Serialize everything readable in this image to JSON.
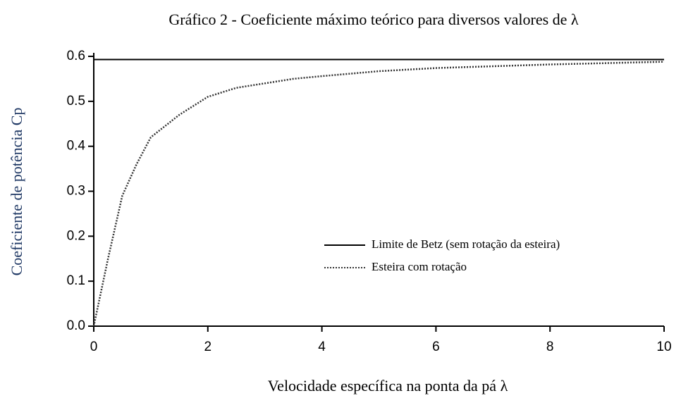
{
  "chart_data": {
    "type": "line",
    "title": "Gráfico 2 - Coeficiente máximo teórico para diversos valores de λ",
    "x_label": "Velocidade específica na ponta da pá λ",
    "y_label": "Coeficiente de potência Cp",
    "x": [
      0,
      0.25,
      0.5,
      0.75,
      1,
      1.5,
      2,
      2.5,
      3,
      3.5,
      4,
      5,
      6,
      7,
      8,
      9,
      10
    ],
    "series": [
      {
        "name": "Limite de Betz (sem rotação da esteira)",
        "color": "#000000",
        "style": "solid",
        "values": [
          0.593,
          0.593,
          0.593,
          0.593,
          0.593,
          0.593,
          0.593,
          0.593,
          0.593,
          0.593,
          0.593,
          0.593,
          0.593,
          0.593,
          0.593,
          0.593,
          0.593
        ]
      },
      {
        "name": "Esteira com rotação",
        "color": "#333333",
        "style": "dotted",
        "values": [
          0,
          0.15,
          0.29,
          0.36,
          0.42,
          0.47,
          0.51,
          0.53,
          0.54,
          0.55,
          0.556,
          0.567,
          0.574,
          0.578,
          0.582,
          0.585,
          0.588
        ]
      }
    ],
    "xlim": [
      0,
      10
    ],
    "xticks": [
      0,
      2,
      4,
      6,
      8,
      10
    ],
    "ylim": [
      0,
      0.6
    ],
    "yticks": [
      {
        "value": 0,
        "label": "0.0"
      },
      0.1,
      0.2,
      0.3,
      0.4,
      0.5,
      0.6
    ],
    "grid": false
  }
}
